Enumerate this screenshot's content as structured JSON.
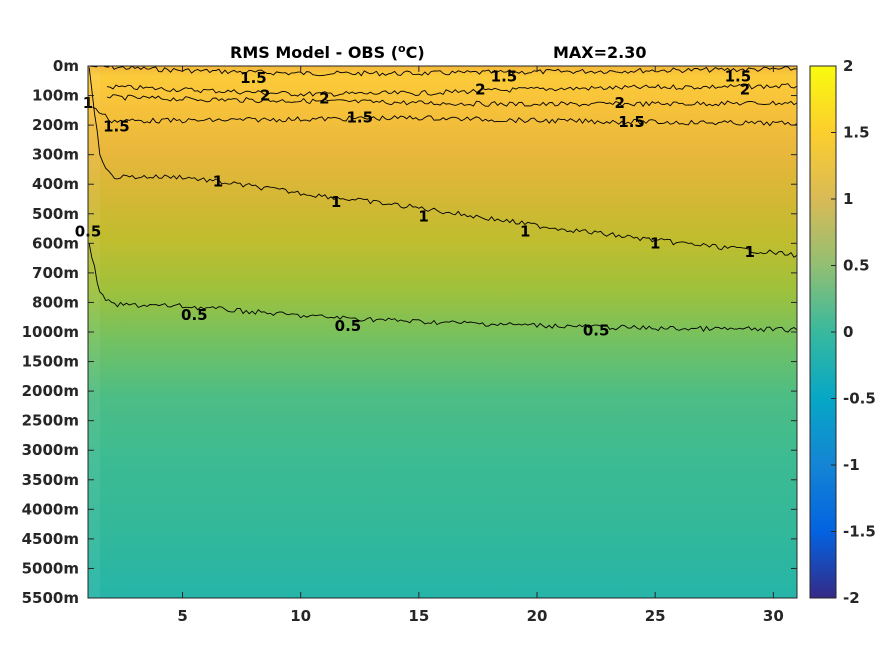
{
  "chart_data": {
    "type": "heatmap",
    "title": "RMS Model - OBS (°C)",
    "title_prefix": "RMS Model - OBS (",
    "title_sup": "o",
    "title_suffix": "C)",
    "max_label": "MAX=2.30",
    "colormap": "parula",
    "clim": [
      -2,
      2
    ],
    "xlim": [
      1,
      31
    ],
    "x_ticks": [
      5,
      10,
      15,
      20,
      25,
      30
    ],
    "x_tick_labels": [
      "5",
      "10",
      "15",
      "20",
      "25",
      "30"
    ],
    "y_ticks": [
      0,
      100,
      200,
      300,
      400,
      500,
      600,
      700,
      800,
      1000,
      1500,
      2000,
      2500,
      3000,
      3500,
      4000,
      4500,
      5000,
      5500
    ],
    "y_tick_labels": [
      "0m",
      "100m",
      "200m",
      "300m",
      "400m",
      "500m",
      "600m",
      "700m",
      "800m",
      "1000m",
      "1500m",
      "2000m",
      "2500m",
      "3000m",
      "3500m",
      "4000m",
      "4500m",
      "5000m",
      "5500m"
    ],
    "y_direction": "reversed",
    "colorbar_ticks": [
      2,
      1.5,
      1,
      0.5,
      0,
      -0.5,
      -1,
      -1.5,
      -2
    ],
    "colorbar_tick_labels": [
      "2",
      "1.5",
      "1",
      "0.5",
      "0",
      "-0.5",
      "-1",
      "-1.5",
      "-2"
    ],
    "contour_levels": [
      0.5,
      1,
      1.5,
      2
    ],
    "contours": [
      {
        "level": 1.5,
        "x": [
          1.1,
          5,
          10,
          15,
          20,
          25,
          31
        ],
        "y": [
          1,
          15,
          25,
          25,
          20,
          15,
          10
        ]
      },
      {
        "level": 2,
        "x": [
          1.8,
          5,
          10,
          15,
          20,
          25,
          31
        ],
        "y": [
          70,
          80,
          95,
          92,
          78,
          72,
          68
        ]
      },
      {
        "level": 2,
        "x": [
          1.8,
          5,
          10,
          15,
          20,
          25,
          31
        ],
        "y": [
          105,
          112,
          118,
          125,
          130,
          128,
          125
        ]
      },
      {
        "level": 1.5,
        "x": [
          1.2,
          2,
          5,
          10,
          15,
          20,
          25,
          31
        ],
        "y": [
          140,
          185,
          185,
          180,
          175,
          185,
          190,
          195
        ]
      },
      {
        "level": 1,
        "x": [
          1.05,
          1.5,
          2,
          5,
          10,
          15,
          20,
          25,
          31
        ],
        "y": [
          5,
          300,
          375,
          375,
          430,
          480,
          540,
          590,
          640
        ]
      },
      {
        "level": 0.5,
        "x": [
          1.05,
          1.5,
          2,
          5,
          10,
          15,
          20,
          25,
          31
        ],
        "y": [
          600,
          770,
          815,
          825,
          890,
          930,
          955,
          975,
          985
        ]
      }
    ],
    "contour_labels": [
      {
        "text": "1.5",
        "x": 8.0,
        "y": 40
      },
      {
        "text": "1.5",
        "x": 18.6,
        "y": 35
      },
      {
        "text": "1.5",
        "x": 28.5,
        "y": 35
      },
      {
        "text": "2",
        "x": 8.5,
        "y": 100
      },
      {
        "text": "2",
        "x": 17.6,
        "y": 80
      },
      {
        "text": "2",
        "x": 28.8,
        "y": 80
      },
      {
        "text": "2",
        "x": 11.0,
        "y": 110
      },
      {
        "text": "2",
        "x": 23.5,
        "y": 125
      },
      {
        "text": "1",
        "x": 1.0,
        "y": 125
      },
      {
        "text": "1.5",
        "x": 2.2,
        "y": 205
      },
      {
        "text": "1.5",
        "x": 12.5,
        "y": 175
      },
      {
        "text": "1.5",
        "x": 24.0,
        "y": 190
      },
      {
        "text": "1",
        "x": 6.5,
        "y": 390
      },
      {
        "text": "1",
        "x": 11.5,
        "y": 460
      },
      {
        "text": "1",
        "x": 15.2,
        "y": 510
      },
      {
        "text": "1",
        "x": 19.5,
        "y": 560
      },
      {
        "text": "1",
        "x": 25.0,
        "y": 600
      },
      {
        "text": "1",
        "x": 29.0,
        "y": 630
      },
      {
        "text": "0.5",
        "x": 1.0,
        "y": 560
      },
      {
        "text": "0.5",
        "x": 5.5,
        "y": 885
      },
      {
        "text": "0.5",
        "x": 12.0,
        "y": 960
      },
      {
        "text": "0.5",
        "x": 22.5,
        "y": 990
      }
    ]
  }
}
